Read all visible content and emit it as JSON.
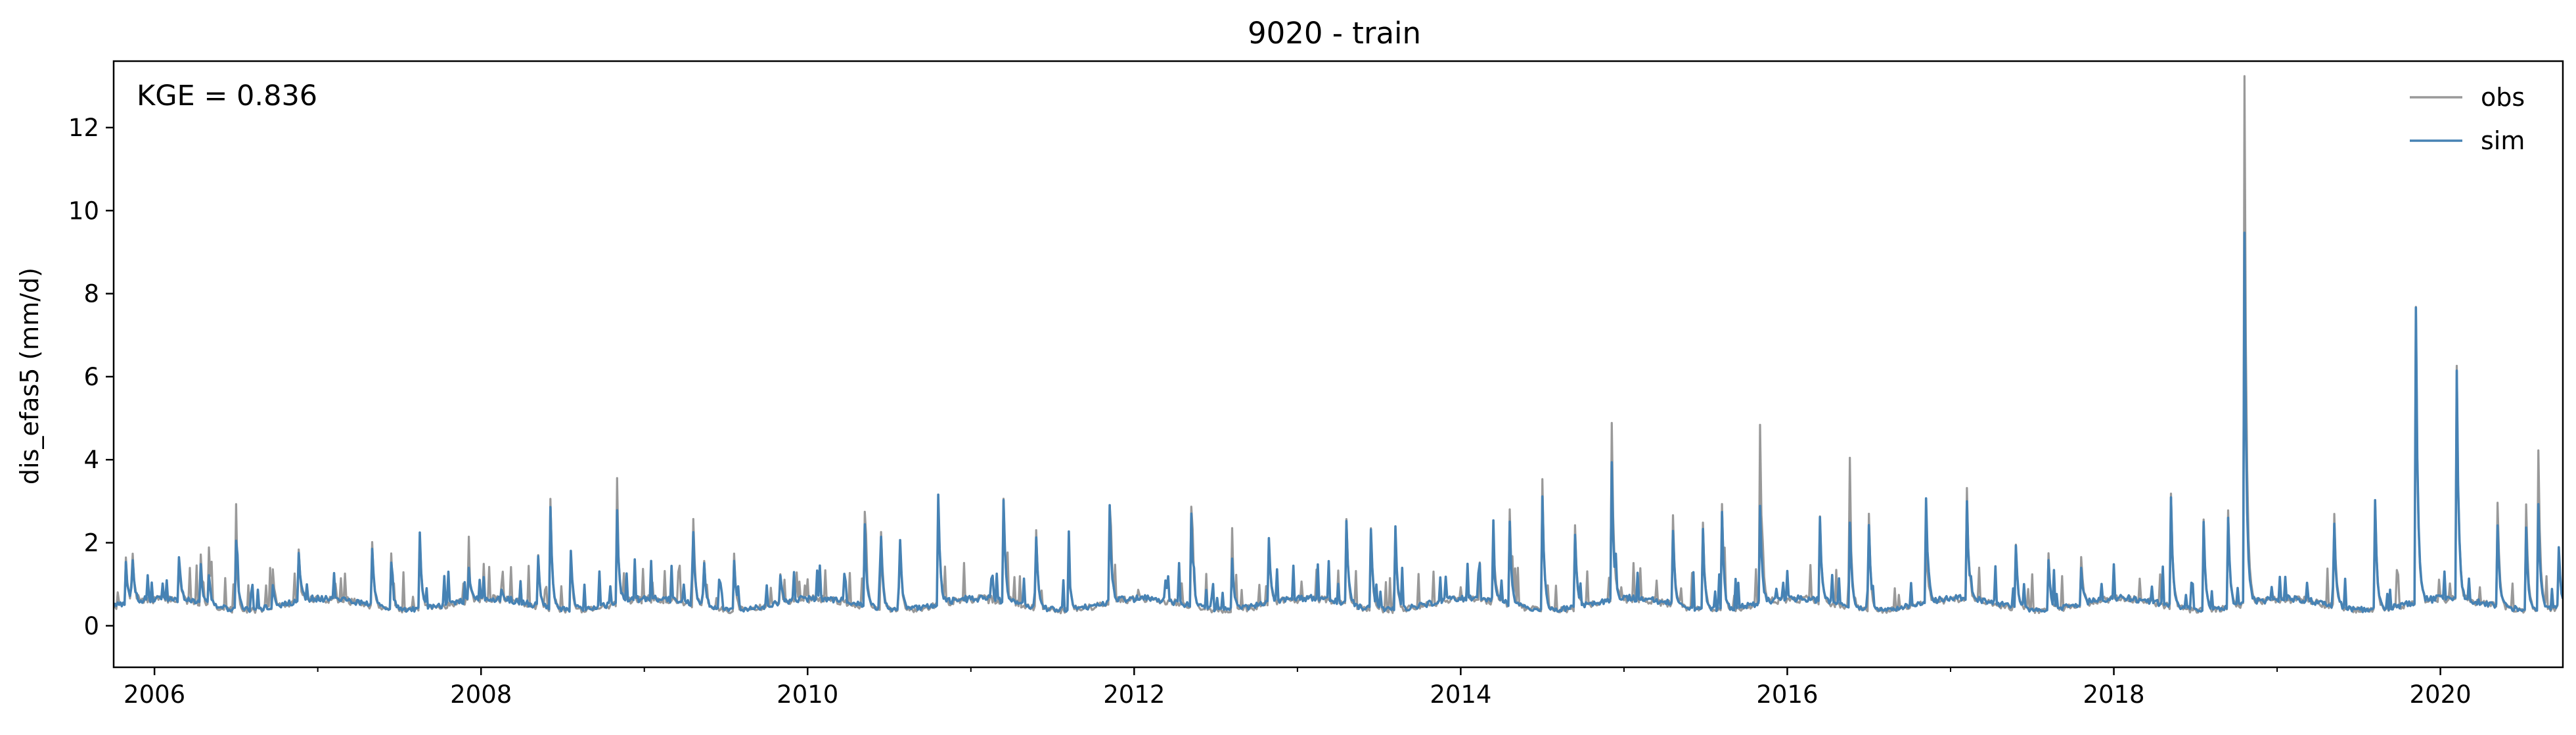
{
  "chart_data": {
    "type": "line",
    "title": "9020 - train",
    "xlabel": "",
    "ylabel": "dis_efas5 (mm/d)",
    "annotation": "KGE = 0.836",
    "xlim": [
      2005.75,
      2020.75
    ],
    "ylim": [
      -1,
      13.6
    ],
    "x_ticks": [
      2006,
      2008,
      2010,
      2012,
      2014,
      2016,
      2018,
      2020
    ],
    "x_tick_labels": [
      "2006",
      "2008",
      "2010",
      "2012",
      "2014",
      "2016",
      "2018",
      "2020"
    ],
    "x_minor_ticks": [
      2007,
      2009,
      2011,
      2013,
      2015,
      2017,
      2019
    ],
    "y_ticks": [
      0,
      2,
      4,
      6,
      8,
      10,
      12
    ],
    "y_tick_labels": [
      "0",
      "2",
      "4",
      "6",
      "8",
      "10",
      "12"
    ],
    "grid": false,
    "legend": {
      "position": "top-right",
      "entries": [
        "obs",
        "sim"
      ]
    },
    "series": [
      {
        "name": "obs",
        "color": "#999999",
        "base": 0.3,
        "noise": 0.14,
        "peaks": [
          [
            2005.82,
            1.9
          ],
          [
            2005.86,
            2.3
          ],
          [
            2006.15,
            1.3
          ],
          [
            2006.28,
            1.8
          ],
          [
            2006.33,
            2.2
          ],
          [
            2006.5,
            1.9
          ],
          [
            2006.72,
            1.6
          ],
          [
            2006.88,
            2.0
          ],
          [
            2007.33,
            2.3
          ],
          [
            2007.45,
            1.6
          ],
          [
            2007.62,
            3.0
          ],
          [
            2007.92,
            1.5
          ],
          [
            2008.12,
            0.8
          ],
          [
            2008.35,
            1.6
          ],
          [
            2008.42,
            4.2
          ],
          [
            2008.55,
            1.7
          ],
          [
            2008.83,
            3.2
          ],
          [
            2009.3,
            2.3
          ],
          [
            2009.36,
            2.3
          ],
          [
            2009.55,
            1.6
          ],
          [
            2009.83,
            1.2
          ],
          [
            2010.35,
            2.6
          ],
          [
            2010.45,
            2.2
          ],
          [
            2010.56,
            3.1
          ],
          [
            2010.8,
            2.9
          ],
          [
            2011.2,
            2.7
          ],
          [
            2011.4,
            2.2
          ],
          [
            2011.6,
            1.5
          ],
          [
            2011.85,
            2.7
          ],
          [
            2012.35,
            2.7
          ],
          [
            2012.6,
            1.7
          ],
          [
            2012.82,
            2.6
          ],
          [
            2013.3,
            2.4
          ],
          [
            2013.45,
            2.3
          ],
          [
            2013.6,
            2.2
          ],
          [
            2014.2,
            1.8
          ],
          [
            2014.3,
            2.6
          ],
          [
            2014.5,
            3.4
          ],
          [
            2014.7,
            2.3
          ],
          [
            2014.92,
            6.7
          ],
          [
            2015.3,
            2.4
          ],
          [
            2015.48,
            3.1
          ],
          [
            2015.6,
            2.8
          ],
          [
            2015.83,
            5.9
          ],
          [
            2016.2,
            2.4
          ],
          [
            2016.38,
            4.1
          ],
          [
            2016.5,
            2.6
          ],
          [
            2016.85,
            1.8
          ],
          [
            2017.1,
            2.9
          ],
          [
            2017.4,
            1.9
          ],
          [
            2017.6,
            1.6
          ],
          [
            2017.8,
            1.4
          ],
          [
            2018.35,
            3.0
          ],
          [
            2018.55,
            2.5
          ],
          [
            2018.7,
            2.6
          ],
          [
            2018.8,
            13.0
          ],
          [
            2019.35,
            2.5
          ],
          [
            2019.6,
            3.0
          ],
          [
            2019.85,
            7.4
          ],
          [
            2020.1,
            5.9
          ],
          [
            2020.35,
            2.8
          ],
          [
            2020.52,
            4.2
          ],
          [
            2020.6,
            4.1
          ],
          [
            2020.72,
            2.4
          ]
        ]
      },
      {
        "name": "sim",
        "color": "#4682b4",
        "base": 0.33,
        "noise": 0.12,
        "peaks": [
          [
            2005.82,
            1.8
          ],
          [
            2005.86,
            1.9
          ],
          [
            2006.15,
            1.4
          ],
          [
            2006.28,
            1.5
          ],
          [
            2006.33,
            1.3
          ],
          [
            2006.5,
            2.0
          ],
          [
            2006.72,
            1.2
          ],
          [
            2006.88,
            1.9
          ],
          [
            2007.33,
            2.2
          ],
          [
            2007.45,
            1.4
          ],
          [
            2007.62,
            3.1
          ],
          [
            2007.92,
            1.4
          ],
          [
            2008.12,
            0.7
          ],
          [
            2008.35,
            1.5
          ],
          [
            2008.42,
            4.1
          ],
          [
            2008.55,
            1.8
          ],
          [
            2008.83,
            3.2
          ],
          [
            2009.3,
            2.0
          ],
          [
            2009.36,
            2.2
          ],
          [
            2009.55,
            1.5
          ],
          [
            2009.83,
            1.1
          ],
          [
            2010.35,
            2.3
          ],
          [
            2010.45,
            2.0
          ],
          [
            2010.56,
            3.2
          ],
          [
            2010.8,
            3.0
          ],
          [
            2011.2,
            2.7
          ],
          [
            2011.4,
            2.0
          ],
          [
            2011.6,
            1.4
          ],
          [
            2011.85,
            2.7
          ],
          [
            2012.35,
            2.6
          ],
          [
            2012.6,
            1.6
          ],
          [
            2012.82,
            2.7
          ],
          [
            2013.3,
            2.3
          ],
          [
            2013.45,
            2.2
          ],
          [
            2013.6,
            2.3
          ],
          [
            2014.2,
            1.4
          ],
          [
            2014.3,
            2.3
          ],
          [
            2014.5,
            3.1
          ],
          [
            2014.7,
            2.1
          ],
          [
            2014.92,
            5.0
          ],
          [
            2015.3,
            2.1
          ],
          [
            2015.48,
            2.8
          ],
          [
            2015.6,
            2.7
          ],
          [
            2015.83,
            3.5
          ],
          [
            2016.2,
            2.3
          ],
          [
            2016.38,
            3.0
          ],
          [
            2016.5,
            2.4
          ],
          [
            2016.85,
            2.9
          ],
          [
            2017.1,
            2.6
          ],
          [
            2017.4,
            1.8
          ],
          [
            2017.6,
            1.5
          ],
          [
            2017.8,
            1.2
          ],
          [
            2018.35,
            2.9
          ],
          [
            2018.55,
            2.4
          ],
          [
            2018.7,
            2.5
          ],
          [
            2018.8,
            9.3
          ],
          [
            2019.35,
            2.3
          ],
          [
            2019.6,
            2.9
          ],
          [
            2019.85,
            7.4
          ],
          [
            2020.1,
            5.9
          ],
          [
            2020.35,
            2.3
          ],
          [
            2020.52,
            3.4
          ],
          [
            2020.6,
            2.9
          ],
          [
            2020.72,
            2.5
          ]
        ]
      }
    ]
  }
}
